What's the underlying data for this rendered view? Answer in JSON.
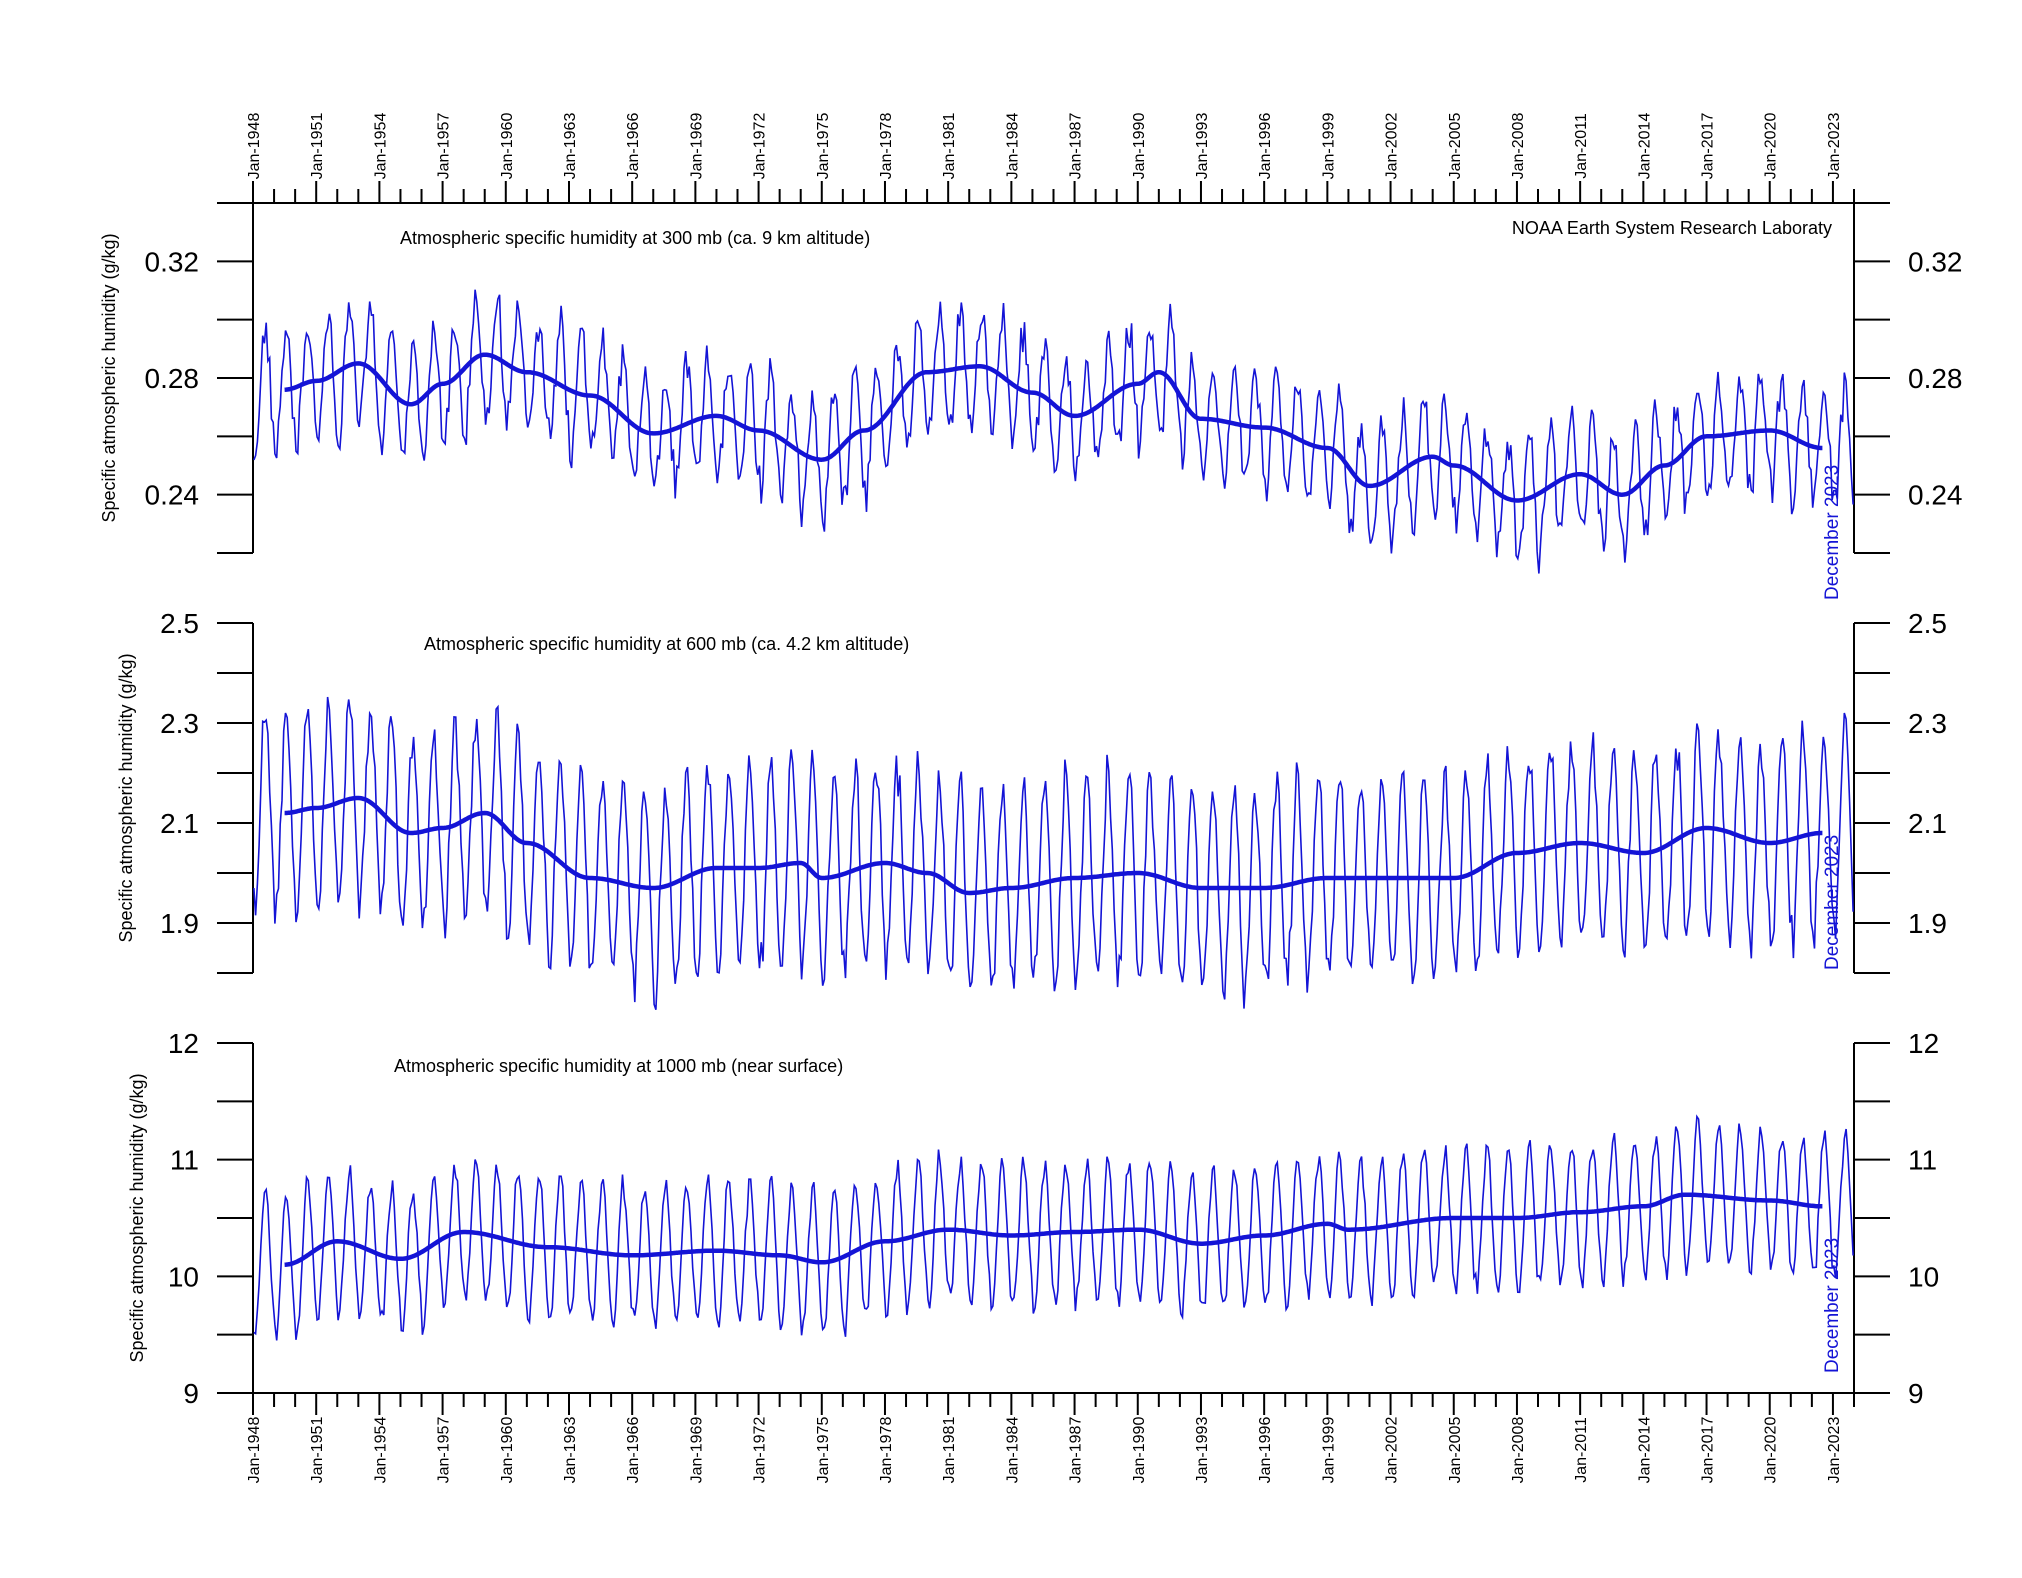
{
  "source_note": "NOAA Earth System Research Laboraty",
  "end_label": "December 2023",
  "colors": {
    "series": "#1414d6",
    "axis": "#000000",
    "background": "#ffffff"
  },
  "time_axis": {
    "start_year": 1948,
    "end_year": 2024,
    "tick_labels": [
      "Jan-1948",
      "Jan-1951",
      "Jan-1954",
      "Jan-1957",
      "Jan-1960",
      "Jan-1963",
      "Jan-1966",
      "Jan-1969",
      "Jan-1972",
      "Jan-1975",
      "Jan-1978",
      "Jan-1981",
      "Jan-1984",
      "Jan-1987",
      "Jan-1990",
      "Jan-1993",
      "Jan-1996",
      "Jan-1999",
      "Jan-2002",
      "Jan-2005",
      "Jan-2008",
      "Jan-2011",
      "Jan-2014",
      "Jan-2017",
      "Jan-2020",
      "Jan-2023"
    ],
    "minor_ticks": "yearly",
    "label_positions": [
      "top",
      "bottom"
    ]
  },
  "chart_data": [
    {
      "type": "line",
      "title": "Atmospheric specific humidity at 300 mb (ca. 9 km altitude)",
      "ylabel": "Specific atmospheric humidity (g/kg)",
      "ylim": [
        0.22,
        0.34
      ],
      "yticks": [
        0.24,
        0.28,
        0.32
      ],
      "ytick_labels": [
        "0.24",
        "0.28",
        "0.32"
      ],
      "grid": false,
      "series": [
        {
          "role": "monthly",
          "description": "monthly values Jan 1948 - Dec 2023, seasonal amplitude approx. ±0.02 g/kg",
          "seasonal_amplitude": 0.02,
          "noise": 0.006
        },
        {
          "role": "running-mean",
          "description": "37-month running average",
          "anchors": [
            [
              1949.5,
              0.276
            ],
            [
              1951,
              0.279
            ],
            [
              1953,
              0.285
            ],
            [
              1955.5,
              0.271
            ],
            [
              1957,
              0.278
            ],
            [
              1959,
              0.288
            ],
            [
              1961,
              0.282
            ],
            [
              1964,
              0.274
            ],
            [
              1967,
              0.261
            ],
            [
              1970,
              0.267
            ],
            [
              1972,
              0.262
            ],
            [
              1975,
              0.252
            ],
            [
              1977,
              0.262
            ],
            [
              1980,
              0.282
            ],
            [
              1982.5,
              0.284
            ],
            [
              1985,
              0.275
            ],
            [
              1987,
              0.267
            ],
            [
              1990,
              0.278
            ],
            [
              1991,
              0.282
            ],
            [
              1993,
              0.266
            ],
            [
              1996,
              0.263
            ],
            [
              1999,
              0.256
            ],
            [
              2001,
              0.243
            ],
            [
              2004,
              0.253
            ],
            [
              2005,
              0.25
            ],
            [
              2008,
              0.238
            ],
            [
              2011,
              0.247
            ],
            [
              2013,
              0.24
            ],
            [
              2015,
              0.25
            ],
            [
              2017,
              0.26
            ],
            [
              2020,
              0.262
            ],
            [
              2022.5,
              0.256
            ]
          ]
        }
      ]
    },
    {
      "type": "line",
      "title": "Atmospheric specific humidity at 600 mb (ca. 4.2 km altitude)",
      "ylabel": "Specific atmospheric humidity (g/kg)",
      "ylim": [
        1.8,
        2.5
      ],
      "yticks": [
        1.9,
        2.1,
        2.3,
        2.5
      ],
      "ytick_labels": [
        "1.9",
        "2.1",
        "2.3",
        "2.5"
      ],
      "grid": false,
      "series": [
        {
          "role": "monthly",
          "description": "monthly values Jan 1948 - Dec 2023, seasonal amplitude approx. ±0.2 g/kg",
          "seasonal_amplitude": 0.2,
          "noise": 0.03
        },
        {
          "role": "running-mean",
          "description": "37-month running average",
          "anchors": [
            [
              1949.5,
              2.12
            ],
            [
              1951,
              2.13
            ],
            [
              1953,
              2.15
            ],
            [
              1955.5,
              2.08
            ],
            [
              1957,
              2.09
            ],
            [
              1959,
              2.12
            ],
            [
              1961,
              2.06
            ],
            [
              1964,
              1.99
            ],
            [
              1967,
              1.97
            ],
            [
              1970,
              2.01
            ],
            [
              1972,
              2.01
            ],
            [
              1974,
              2.02
            ],
            [
              1975,
              1.99
            ],
            [
              1978,
              2.02
            ],
            [
              1980,
              2.0
            ],
            [
              1982,
              1.96
            ],
            [
              1984,
              1.97
            ],
            [
              1987,
              1.99
            ],
            [
              1990,
              2.0
            ],
            [
              1993,
              1.97
            ],
            [
              1996,
              1.97
            ],
            [
              1999,
              1.99
            ],
            [
              2002,
              1.99
            ],
            [
              2005,
              1.99
            ],
            [
              2008,
              2.04
            ],
            [
              2011,
              2.06
            ],
            [
              2014,
              2.04
            ],
            [
              2017,
              2.09
            ],
            [
              2020,
              2.06
            ],
            [
              2022.5,
              2.08
            ]
          ]
        }
      ]
    },
    {
      "type": "line",
      "title": "Atmospheric specific humidity at 1000 mb (near surface)",
      "ylabel": "Specific atmospheric humidity (g/kg)",
      "ylim": [
        9,
        12
      ],
      "yticks": [
        9,
        10,
        11,
        12
      ],
      "ytick_labels": [
        "9",
        "10",
        "11",
        "12"
      ],
      "grid": false,
      "series": [
        {
          "role": "monthly",
          "description": "monthly values Jan 1948 - Dec 2023, seasonal amplitude approx. ±0.6 g/kg",
          "seasonal_amplitude": 0.6,
          "noise": 0.05
        },
        {
          "role": "running-mean",
          "description": "37-month running average",
          "anchors": [
            [
              1949.5,
              10.1
            ],
            [
              1952,
              10.3
            ],
            [
              1955,
              10.15
            ],
            [
              1958,
              10.38
            ],
            [
              1962,
              10.25
            ],
            [
              1966,
              10.18
            ],
            [
              1970,
              10.22
            ],
            [
              1973,
              10.18
            ],
            [
              1975,
              10.12
            ],
            [
              1978,
              10.3
            ],
            [
              1981,
              10.4
            ],
            [
              1984,
              10.35
            ],
            [
              1987,
              10.38
            ],
            [
              1990,
              10.4
            ],
            [
              1993,
              10.28
            ],
            [
              1996,
              10.35
            ],
            [
              1999,
              10.45
            ],
            [
              2000,
              10.4
            ],
            [
              2005,
              10.5
            ],
            [
              2008,
              10.5
            ],
            [
              2011,
              10.55
            ],
            [
              2014,
              10.6
            ],
            [
              2016,
              10.7
            ],
            [
              2020,
              10.65
            ],
            [
              2022.5,
              10.6
            ]
          ]
        }
      ]
    }
  ]
}
